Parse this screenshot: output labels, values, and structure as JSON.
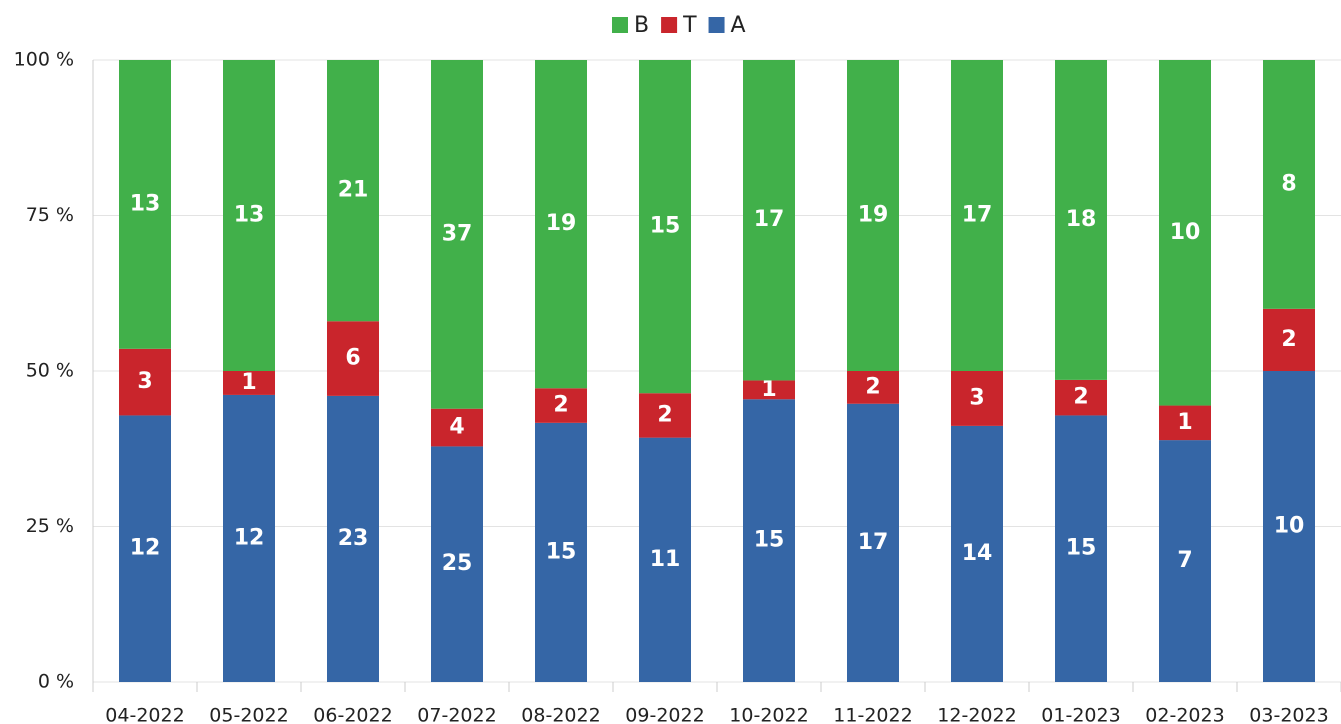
{
  "chart_data": {
    "type": "bar",
    "stacked": "percent",
    "categories": [
      "04-2022",
      "05-2022",
      "06-2022",
      "07-2022",
      "08-2022",
      "09-2022",
      "10-2022",
      "11-2022",
      "12-2022",
      "01-2023",
      "02-2023",
      "03-2023"
    ],
    "series": [
      {
        "name": "A",
        "color": "#3566a6",
        "values": [
          12,
          12,
          23,
          25,
          15,
          11,
          15,
          17,
          14,
          15,
          7,
          10
        ]
      },
      {
        "name": "T",
        "color": "#c9252c",
        "values": [
          3,
          1,
          6,
          4,
          2,
          2,
          1,
          2,
          3,
          2,
          1,
          2
        ]
      },
      {
        "name": "B",
        "color": "#41b04a",
        "values": [
          13,
          13,
          21,
          37,
          19,
          15,
          17,
          19,
          17,
          18,
          10,
          8
        ]
      }
    ],
    "ylim": [
      0,
      100
    ],
    "yticks": [
      {
        "value": 0,
        "label": "0 %"
      },
      {
        "value": 25,
        "label": "25 %"
      },
      {
        "value": 50,
        "label": "50 %"
      },
      {
        "value": 75,
        "label": "75 %"
      },
      {
        "value": 100,
        "label": "100 %"
      }
    ],
    "grid": true,
    "legend": "top"
  }
}
